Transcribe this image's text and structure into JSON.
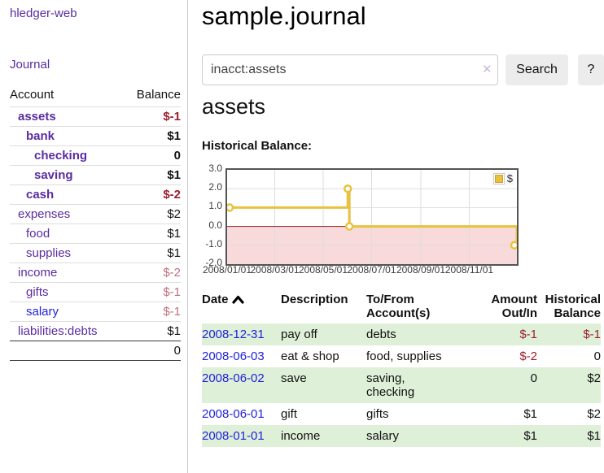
{
  "app": {
    "title": "hledger-web",
    "nav": {
      "journal": "Journal"
    }
  },
  "sidebar": {
    "columns": {
      "account": "Account",
      "balance": "Balance"
    },
    "accounts": [
      {
        "name": "assets",
        "balance": "$-1",
        "indent": 0,
        "strong": true,
        "name_color": "purple",
        "balance_color": "red"
      },
      {
        "name": "bank",
        "balance": "$1",
        "indent": 1,
        "strong": true,
        "name_color": "purple",
        "balance_color": "black"
      },
      {
        "name": "checking",
        "balance": "0",
        "indent": 2,
        "strong": true,
        "name_color": "purple",
        "balance_color": "black"
      },
      {
        "name": "saving",
        "balance": "$1",
        "indent": 2,
        "strong": true,
        "name_color": "purple",
        "balance_color": "black"
      },
      {
        "name": "cash",
        "balance": "$-2",
        "indent": 1,
        "strong": true,
        "name_color": "purple",
        "balance_color": "red"
      },
      {
        "name": "expenses",
        "balance": "$2",
        "indent": 0,
        "strong": false,
        "name_color": "purple",
        "balance_color": "black"
      },
      {
        "name": "food",
        "balance": "$1",
        "indent": 1,
        "strong": false,
        "name_color": "purple",
        "balance_color": "black"
      },
      {
        "name": "supplies",
        "balance": "$1",
        "indent": 1,
        "strong": false,
        "name_color": "purple",
        "balance_color": "black"
      },
      {
        "name": "income",
        "balance": "$-2",
        "indent": 0,
        "strong": false,
        "name_color": "purple",
        "balance_color": "rose"
      },
      {
        "name": "gifts",
        "balance": "$-1",
        "indent": 1,
        "strong": false,
        "name_color": "purple",
        "balance_color": "rose"
      },
      {
        "name": "salary",
        "balance": "$-1",
        "indent": 1,
        "strong": false,
        "name_color": "blue",
        "balance_color": "rose"
      },
      {
        "name": "liabilities:debts",
        "balance": "$1",
        "indent": 0,
        "strong": false,
        "name_color": "purple",
        "balance_color": "black"
      }
    ],
    "total": "0"
  },
  "main": {
    "title": "sample.journal",
    "search": {
      "value": "inacct:assets",
      "clear_icon": "✕",
      "button_label": "Search",
      "help_label": "?"
    },
    "account_heading": "assets",
    "chart_heading": "Historical Balance:",
    "chart_data": {
      "type": "line",
      "step": true,
      "title": "Historical Balance:",
      "legend": [
        {
          "label": "$"
        }
      ],
      "legend_position": "top-right",
      "ylim": [
        -2,
        3
      ],
      "y_ticks": [
        {
          "label": "3.0",
          "v": 3
        },
        {
          "label": "2.0",
          "v": 2
        },
        {
          "label": "1.0",
          "v": 1
        },
        {
          "label": "0.0",
          "v": 0
        },
        {
          "label": "-1.0",
          "v": -1
        },
        {
          "label": "-2.0",
          "v": -2
        }
      ],
      "x_ticks": [
        {
          "label": "2008/01/01",
          "f": 0
        },
        {
          "label": "2008/03/01",
          "f": 0.1644
        },
        {
          "label": "2008/05/01",
          "f": 0.3315
        },
        {
          "label": "2008/07/01",
          "f": 0.4986
        },
        {
          "label": "2008/09/01",
          "f": 0.6685
        },
        {
          "label": "2008/11/01",
          "f": 0.8356
        }
      ],
      "series": [
        {
          "name": "$",
          "points": [
            {
              "date": "2008-01-01",
              "f": 0,
              "v": 1
            },
            {
              "date": "2008-06-01",
              "f": 0.4164,
              "v": 2
            },
            {
              "date": "2008-06-03",
              "f": 0.4219,
              "v": 0
            },
            {
              "date": "2008-12-31",
              "f": 1,
              "v": -1
            }
          ]
        }
      ],
      "colors": {
        "line": "#e8c23f",
        "legend_box_border": "#c9a22b",
        "negative_region": "#f9dada",
        "zero_line": "#8e1f1f",
        "grid": "#ddd",
        "border": "#545454"
      }
    },
    "register": {
      "headers": {
        "date": "Date",
        "description": "Description",
        "account": "To/From Account(s)",
        "amount": "Amount Out/In",
        "balance": "Historical Balance"
      },
      "rows": [
        {
          "date": "2008-12-31",
          "description": "pay off",
          "accounts_lines": [
            "debts"
          ],
          "amount": "$-1",
          "balance": "$-1"
        },
        {
          "date": "2008-06-03",
          "description": "eat & shop",
          "accounts_lines": [
            "food, supplies"
          ],
          "amount": "$-2",
          "balance": "0"
        },
        {
          "date": "2008-06-02",
          "description": "save",
          "accounts_lines": [
            "saving,",
            "checking"
          ],
          "amount": "0",
          "balance": "$2"
        },
        {
          "date": "2008-06-01",
          "description": "gift",
          "accounts_lines": [
            "gifts"
          ],
          "amount": "$1",
          "balance": "$2"
        },
        {
          "date": "2008-01-01",
          "description": "income",
          "accounts_lines": [
            "salary"
          ],
          "amount": "$1",
          "balance": "$1"
        }
      ]
    }
  },
  "colors": {
    "link_purple": "#5a2ca0",
    "link_blue": "#2222dd",
    "negative_red": "#9c1f2c",
    "negative_rose": "#c1707e",
    "row_green": "#dff0d8",
    "button_gray": "#ececec"
  }
}
